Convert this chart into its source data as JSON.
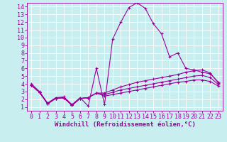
{
  "bg_color": "#c8eef0",
  "line_color": "#990099",
  "grid_color": "#aaaaaa",
  "xlabel": "Windchill (Refroidissement éolien,°C)",
  "xlabel_fontsize": 6.5,
  "tick_fontsize": 6.0,
  "xlim": [
    -0.5,
    23.5
  ],
  "ylim": [
    0.5,
    14.5
  ],
  "xticks": [
    0,
    1,
    2,
    3,
    4,
    5,
    6,
    7,
    8,
    9,
    10,
    11,
    12,
    13,
    14,
    15,
    16,
    17,
    18,
    19,
    20,
    21,
    22,
    23
  ],
  "yticks": [
    1,
    2,
    3,
    4,
    5,
    6,
    7,
    8,
    9,
    10,
    11,
    12,
    13,
    14
  ],
  "lines": [
    {
      "x": [
        0,
        1,
        2,
        3,
        4,
        5,
        6,
        7,
        8,
        9,
        10,
        11,
        12,
        13,
        14,
        15,
        16,
        17,
        18,
        19,
        20,
        21,
        22,
        23
      ],
      "y": [
        4.0,
        3.0,
        1.5,
        2.2,
        2.3,
        1.3,
        2.2,
        1.1,
        6.0,
        1.3,
        9.8,
        12.0,
        13.9,
        14.5,
        13.8,
        11.8,
        10.5,
        7.5,
        8.0,
        6.0,
        5.8,
        5.5,
        5.3,
        4.2
      ]
    },
    {
      "x": [
        0,
        1,
        2,
        3,
        4,
        5,
        6,
        7,
        8,
        9,
        10,
        11,
        12,
        13,
        14,
        15,
        16,
        17,
        18,
        19,
        20,
        21,
        22,
        23
      ],
      "y": [
        3.8,
        2.9,
        1.4,
        2.1,
        2.2,
        1.2,
        2.1,
        2.2,
        2.8,
        2.8,
        3.2,
        3.6,
        3.9,
        4.2,
        4.4,
        4.6,
        4.8,
        5.0,
        5.2,
        5.5,
        5.7,
        5.8,
        5.4,
        4.1
      ]
    },
    {
      "x": [
        0,
        1,
        2,
        3,
        4,
        5,
        6,
        7,
        8,
        9,
        10,
        11,
        12,
        13,
        14,
        15,
        16,
        17,
        18,
        19,
        20,
        21,
        22,
        23
      ],
      "y": [
        3.8,
        2.9,
        1.4,
        2.1,
        2.2,
        1.2,
        2.1,
        2.2,
        2.8,
        2.6,
        2.9,
        3.2,
        3.4,
        3.6,
        3.8,
        4.0,
        4.2,
        4.4,
        4.6,
        4.8,
        5.0,
        5.1,
        4.8,
        3.9
      ]
    },
    {
      "x": [
        0,
        1,
        2,
        3,
        4,
        5,
        6,
        7,
        8,
        9,
        10,
        11,
        12,
        13,
        14,
        15,
        16,
        17,
        18,
        19,
        20,
        21,
        22,
        23
      ],
      "y": [
        3.8,
        2.9,
        1.4,
        2.1,
        2.2,
        1.2,
        2.1,
        2.2,
        2.8,
        2.4,
        2.6,
        2.8,
        3.0,
        3.2,
        3.4,
        3.6,
        3.8,
        4.0,
        4.2,
        4.3,
        4.5,
        4.5,
        4.3,
        3.7
      ]
    }
  ]
}
